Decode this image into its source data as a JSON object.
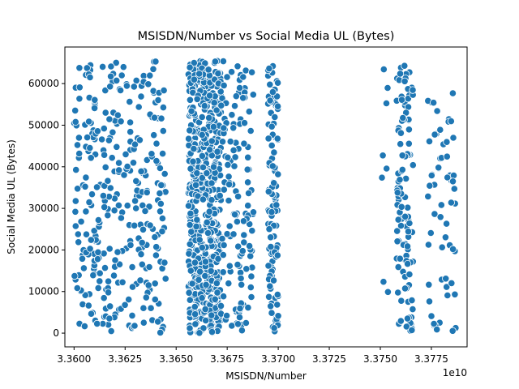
{
  "chart_data": {
    "type": "scatter",
    "title": "MSISDN/Number vs Social Media UL (Bytes)",
    "xlabel": "MSISDN/Number",
    "ylabel": "Social Media UL (Bytes)",
    "x_offset_label": "1e10",
    "x_multiplier": 10000000000,
    "xlim": [
      3.35955,
      3.37925
    ],
    "ylim": [
      -3300,
      68800
    ],
    "x_ticks": [
      3.36,
      3.3625,
      3.365,
      3.3675,
      3.37,
      3.3725,
      3.375,
      3.3775
    ],
    "x_tick_labels": [
      "3.3600",
      "3.3625",
      "3.3650",
      "3.3675",
      "3.3700",
      "3.3725",
      "3.3750",
      "3.3775"
    ],
    "y_ticks": [
      0,
      10000,
      20000,
      30000,
      40000,
      50000,
      60000
    ],
    "y_tick_labels": [
      "0",
      "10000",
      "20000",
      "30000",
      "40000",
      "50000",
      "60000"
    ],
    "grid": false,
    "marker_color": "#1f77b4",
    "marker_edge_color": "#ffffff",
    "clusters": [
      {
        "x_range": [
          3.36,
          3.3645
        ],
        "y_range": [
          0,
          65500
        ],
        "count": 320
      },
      {
        "x_range": [
          3.3656,
          3.3672
        ],
        "y_range": [
          0,
          65500
        ],
        "count": 560
      },
      {
        "x_range": [
          3.3672,
          3.3688
        ],
        "y_range": [
          0,
          65500
        ],
        "count": 130
      },
      {
        "x_range": [
          3.3695,
          3.37
        ],
        "y_range": [
          0,
          65000
        ],
        "count": 110
      },
      {
        "x_range": [
          3.375,
          3.3754
        ],
        "y_range": [
          7000,
          65500
        ],
        "count": 8
      },
      {
        "x_range": [
          3.3758,
          3.3766
        ],
        "y_range": [
          0,
          65000
        ],
        "count": 110
      },
      {
        "x_range": [
          3.3773,
          3.3787
        ],
        "y_range": [
          0,
          62000
        ],
        "count": 60
      }
    ]
  }
}
